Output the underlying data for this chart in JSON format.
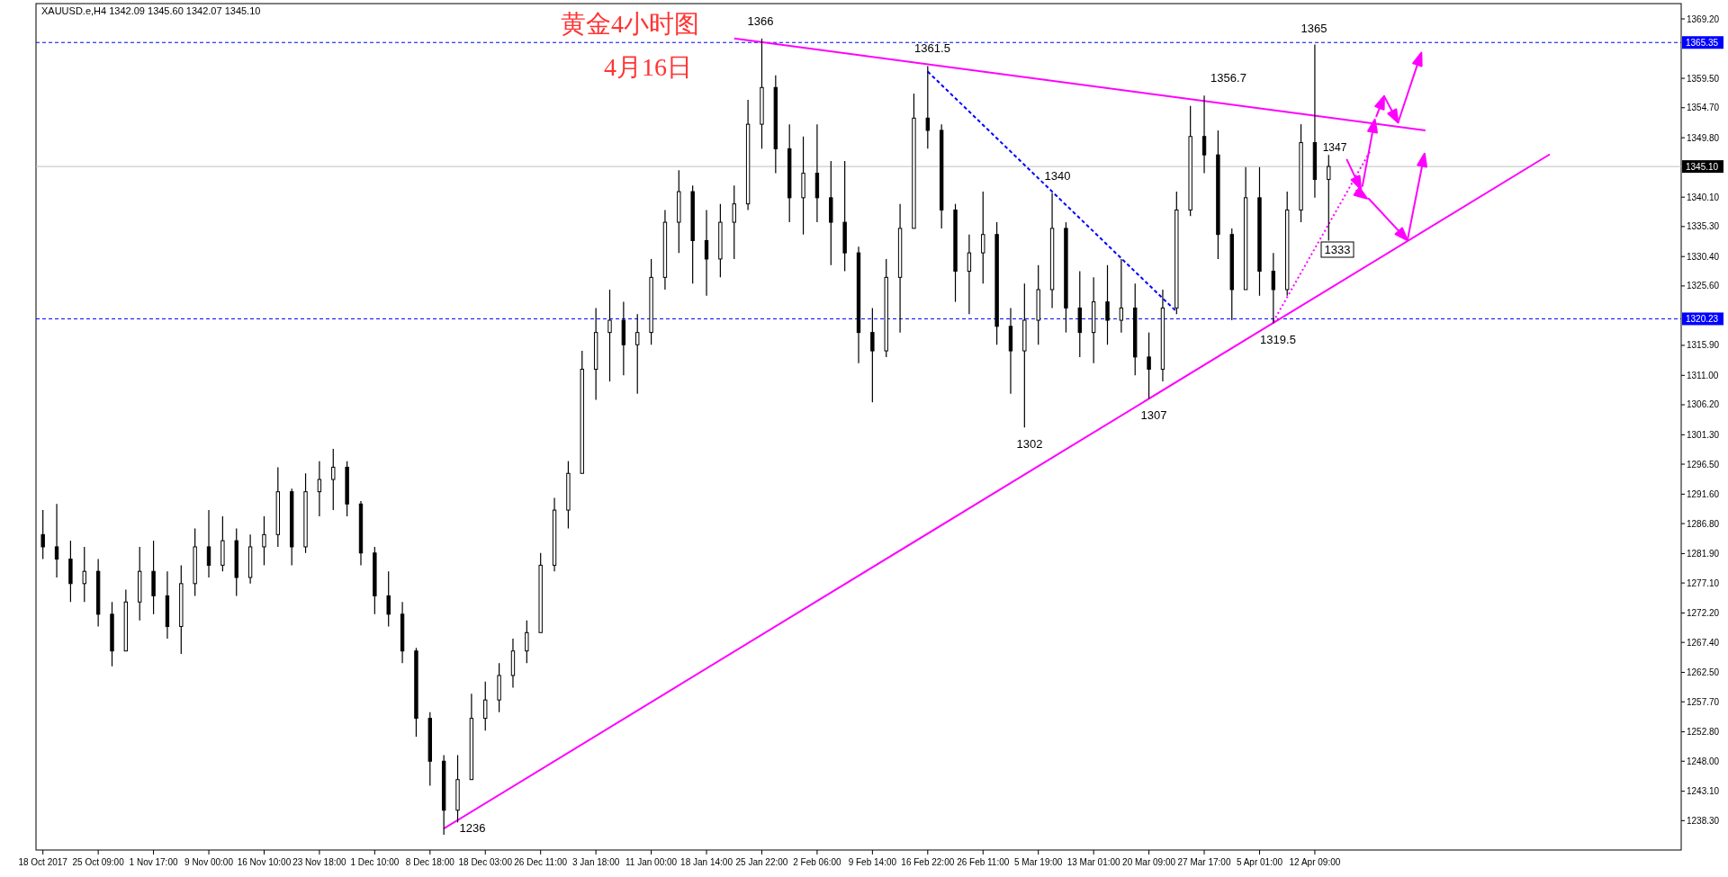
{
  "chart_data": {
    "type": "candlestick",
    "title": "黄金4小时图",
    "subtitle": "4月16日",
    "categories": [
      "18 Oct 2017",
      null,
      null,
      null,
      "25 Oct 09:00",
      null,
      null,
      null,
      "1 Nov 17:00",
      null,
      null,
      null,
      "9 Nov 00:00",
      null,
      null,
      null,
      "16 Nov 10:00",
      null,
      null,
      null,
      "23 Nov 18:00",
      null,
      null,
      null,
      "1 Dec 10:00",
      null,
      null,
      null,
      "8 Dec 18:00",
      null,
      null,
      null,
      "18 Dec 03:00",
      null,
      null,
      null,
      "26 Dec 11:00",
      null,
      null,
      null,
      "3 Jan 18:00",
      null,
      null,
      null,
      "11 Jan 00:00",
      null,
      null,
      null,
      "18 Jan 14:00",
      null,
      null,
      null,
      "25 Jan 22:00",
      null,
      null,
      null,
      "2 Feb 06:00",
      null,
      null,
      null,
      "9 Feb 14:00",
      null,
      null,
      null,
      "16 Feb 22:00",
      null,
      null,
      null,
      "26 Feb 11:00",
      null,
      null,
      null,
      "5 Mar 19:00",
      null,
      null,
      null,
      "13 Mar 01:00",
      null,
      null,
      null,
      "20 Mar 09:00",
      null,
      null,
      null,
      "27 Mar 17:00",
      null,
      null,
      null,
      "5 Apr 01:00",
      null,
      null,
      null,
      "12 Apr 09:00",
      null,
      null,
      null,
      null,
      null,
      null,
      null,
      null,
      null,
      null,
      null,
      null,
      null,
      null,
      null,
      null,
      null,
      null,
      null,
      null,
      null,
      null,
      null,
      null,
      null,
      null
    ],
    "ohlc": [
      [
        1285,
        1289,
        1281,
        1283
      ],
      [
        1283,
        1290,
        1278,
        1281
      ],
      [
        1281,
        1284,
        1274,
        1277
      ],
      [
        1277,
        1283,
        1274,
        1279
      ],
      [
        1279,
        1281,
        1270,
        1272
      ],
      [
        1272,
        1274,
        1263.5,
        1266
      ],
      [
        1266,
        1276,
        1266,
        1274
      ],
      [
        1274,
        1283,
        1271,
        1279
      ],
      [
        1279,
        1284,
        1272,
        1275
      ],
      [
        1275,
        1279,
        1268,
        1270
      ],
      [
        1270,
        1280,
        1265.5,
        1277
      ],
      [
        1277,
        1286,
        1275,
        1283
      ],
      [
        1283,
        1289,
        1278,
        1280
      ],
      [
        1280,
        1288,
        1279,
        1284
      ],
      [
        1284,
        1286,
        1275,
        1278
      ],
      [
        1278,
        1285,
        1277,
        1283
      ],
      [
        1283,
        1288,
        1280,
        1285
      ],
      [
        1285,
        1296,
        1283,
        1292
      ],
      [
        1292,
        1292.5,
        1280,
        1283
      ],
      [
        1283,
        1295,
        1282,
        1292
      ],
      [
        1292,
        1297,
        1288,
        1294
      ],
      [
        1294,
        1299,
        1289,
        1296
      ],
      [
        1296,
        1297,
        1288,
        1290
      ],
      [
        1290,
        1290.5,
        1280,
        1282
      ],
      [
        1282,
        1283,
        1272,
        1275
      ],
      [
        1275,
        1279,
        1270,
        1272
      ],
      [
        1272,
        1274,
        1264,
        1266
      ],
      [
        1266,
        1266.5,
        1252,
        1255
      ],
      [
        1255,
        1256,
        1244,
        1248
      ],
      [
        1248,
        1249,
        1236,
        1240
      ],
      [
        1240,
        1249,
        1238,
        1245
      ],
      [
        1245,
        1259,
        1245,
        1255
      ],
      [
        1255,
        1261,
        1253,
        1258
      ],
      [
        1258,
        1264,
        1256,
        1262
      ],
      [
        1262,
        1268,
        1260,
        1266
      ],
      [
        1266,
        1271,
        1264,
        1269
      ],
      [
        1269,
        1282,
        1269,
        1280
      ],
      [
        1280,
        1291,
        1279,
        1289
      ],
      [
        1289,
        1297,
        1286,
        1295
      ],
      [
        1295,
        1315,
        1295,
        1312
      ],
      [
        1312,
        1322,
        1307,
        1318
      ],
      [
        1318,
        1325,
        1310,
        1320
      ],
      [
        1320,
        1323,
        1311,
        1316
      ],
      [
        1316,
        1321,
        1308,
        1318
      ],
      [
        1318,
        1330,
        1316,
        1327
      ],
      [
        1327,
        1338,
        1325,
        1336
      ],
      [
        1336,
        1344.5,
        1331,
        1341
      ],
      [
        1341,
        1342,
        1326,
        1333
      ],
      [
        1333,
        1338,
        1324,
        1330
      ],
      [
        1330,
        1339,
        1327,
        1336
      ],
      [
        1336,
        1342,
        1330,
        1339
      ],
      [
        1339,
        1356,
        1338,
        1352
      ],
      [
        1352,
        1366,
        1348,
        1358
      ],
      [
        1358,
        1360,
        1344,
        1348
      ],
      [
        1348,
        1352,
        1336,
        1340
      ],
      [
        1340,
        1350,
        1334,
        1344
      ],
      [
        1344,
        1352,
        1336,
        1340
      ],
      [
        1340,
        1346,
        1329,
        1336
      ],
      [
        1336,
        1346,
        1328,
        1331
      ],
      [
        1331,
        1332,
        1313,
        1318
      ],
      [
        1318,
        1322,
        1306.6,
        1315
      ],
      [
        1315,
        1330,
        1314,
        1327
      ],
      [
        1327,
        1339,
        1318,
        1335
      ],
      [
        1335,
        1357,
        1335,
        1353
      ],
      [
        1353,
        1361.5,
        1348,
        1351
      ],
      [
        1351,
        1352,
        1335,
        1338
      ],
      [
        1338,
        1339,
        1323,
        1328
      ],
      [
        1328,
        1334,
        1321,
        1331
      ],
      [
        1331,
        1341,
        1326,
        1334
      ],
      [
        1334,
        1336,
        1316,
        1319
      ],
      [
        1319,
        1322,
        1308,
        1315
      ],
      [
        1315,
        1326,
        1302.5,
        1320
      ],
      [
        1320,
        1329,
        1316,
        1325
      ],
      [
        1325,
        1340.8,
        1322,
        1335
      ],
      [
        1335,
        1336,
        1318,
        1322
      ],
      [
        1322,
        1328,
        1314,
        1318
      ],
      [
        1318,
        1327,
        1313,
        1323
      ],
      [
        1323,
        1329,
        1316,
        1320
      ],
      [
        1320,
        1330,
        1318,
        1322
      ],
      [
        1322,
        1326,
        1311,
        1314
      ],
      [
        1314,
        1318,
        1307.2,
        1312
      ],
      [
        1312,
        1325,
        1310,
        1322
      ],
      [
        1322,
        1341,
        1321,
        1338
      ],
      [
        1338,
        1355,
        1337,
        1350
      ],
      [
        1350,
        1356.7,
        1344,
        1347
      ],
      [
        1347,
        1351,
        1330,
        1334
      ],
      [
        1334,
        1335,
        1320,
        1325
      ],
      [
        1325,
        1345,
        1325,
        1340
      ],
      [
        1340,
        1345,
        1324,
        1328
      ],
      [
        1328,
        1331,
        1319.5,
        1325
      ],
      [
        1325,
        1341,
        1324,
        1338
      ],
      [
        1338,
        1352,
        1336,
        1349
      ],
      [
        1349,
        1365,
        1340,
        1343
      ],
      [
        1343,
        1347,
        1333,
        1345.1
      ],
      null,
      null,
      null,
      null,
      null,
      null,
      null,
      null,
      null,
      null,
      null,
      null,
      null,
      null,
      null,
      null,
      null,
      null,
      null,
      null,
      null,
      null,
      null,
      null,
      null
    ],
    "series": [
      {
        "type": "line",
        "color": "#ff00ff",
        "line_style": "solid",
        "values": [
          null,
          null,
          null,
          null,
          null,
          null,
          null,
          null,
          null,
          null,
          null,
          null,
          null,
          null,
          null,
          null,
          null,
          null,
          null,
          null,
          null,
          null,
          null,
          null,
          null,
          null,
          null,
          null,
          null,
          null,
          null,
          null,
          null,
          null,
          null,
          null,
          null,
          null,
          null,
          null,
          null,
          null,
          null,
          null,
          null,
          null,
          null,
          null,
          null,
          null,
          1366.0,
          null,
          null,
          null,
          null,
          null,
          null,
          null,
          null,
          null,
          null,
          null,
          null,
          null,
          null,
          null,
          null,
          null,
          null,
          null,
          null,
          null,
          null,
          null,
          null,
          null,
          null,
          null,
          null,
          null,
          null,
          null,
          null,
          null,
          null,
          null,
          null,
          null,
          null,
          null,
          null,
          null,
          null,
          null,
          null,
          null,
          null,
          null,
          null,
          null,
          1351.0,
          null,
          null,
          null,
          null,
          null,
          null,
          null,
          null,
          null,
          null,
          null,
          null,
          null,
          null,
          null,
          null,
          null,
          null
        ]
      },
      {
        "type": "line",
        "color": "#ff00ff",
        "line_style": "solid",
        "values": [
          null,
          null,
          null,
          null,
          null,
          null,
          null,
          null,
          null,
          null,
          null,
          null,
          null,
          null,
          null,
          null,
          null,
          null,
          null,
          null,
          null,
          null,
          null,
          null,
          null,
          null,
          null,
          null,
          null,
          1237.0,
          null,
          null,
          null,
          null,
          null,
          null,
          null,
          null,
          null,
          null,
          null,
          null,
          null,
          null,
          null,
          null,
          null,
          null,
          null,
          null,
          null,
          null,
          null,
          null,
          null,
          null,
          null,
          null,
          null,
          null,
          null,
          null,
          null,
          null,
          null,
          null,
          null,
          null,
          null,
          null,
          null,
          null,
          null,
          null,
          null,
          null,
          null,
          null,
          null,
          null,
          null,
          null,
          null,
          null,
          null,
          null,
          null,
          null,
          null,
          null,
          null,
          null,
          null,
          null,
          null,
          null,
          null,
          null,
          null,
          null,
          null,
          null,
          null,
          null,
          null,
          null,
          null,
          null,
          null,
          1347.1,
          null,
          null,
          null,
          null,
          null,
          null,
          null,
          null,
          null
        ]
      },
      {
        "type": "line",
        "color": "#0000ff",
        "line_style": "dashed",
        "values": [
          null,
          null,
          null,
          null,
          null,
          null,
          null,
          null,
          null,
          null,
          null,
          null,
          null,
          null,
          null,
          null,
          null,
          null,
          null,
          null,
          null,
          null,
          null,
          null,
          null,
          null,
          null,
          null,
          null,
          null,
          null,
          null,
          null,
          null,
          null,
          null,
          null,
          null,
          null,
          null,
          null,
          null,
          null,
          null,
          null,
          null,
          null,
          null,
          null,
          null,
          null,
          null,
          null,
          null,
          null,
          null,
          null,
          null,
          null,
          null,
          null,
          null,
          null,
          null,
          1360.6,
          null,
          null,
          null,
          null,
          null,
          null,
          null,
          null,
          null,
          null,
          null,
          null,
          null,
          null,
          null,
          null,
          null,
          1321.4,
          null,
          null,
          null,
          null,
          null,
          null,
          null,
          null,
          null,
          null,
          null,
          null,
          null,
          null,
          null,
          null,
          null,
          null,
          null,
          null,
          null,
          null,
          null,
          null,
          null,
          null,
          null,
          null,
          null,
          null,
          null,
          null,
          null,
          null,
          null,
          null
        ]
      },
      {
        "type": "line",
        "color": "#ff00ff",
        "line_style": "dotted",
        "values": [
          null,
          null,
          null,
          null,
          null,
          null,
          null,
          null,
          null,
          null,
          null,
          null,
          null,
          null,
          null,
          null,
          null,
          null,
          null,
          null,
          null,
          null,
          null,
          null,
          null,
          null,
          null,
          null,
          null,
          null,
          null,
          null,
          null,
          null,
          null,
          null,
          null,
          null,
          null,
          null,
          null,
          null,
          null,
          null,
          null,
          null,
          null,
          null,
          null,
          null,
          null,
          null,
          null,
          null,
          null,
          null,
          null,
          null,
          null,
          null,
          null,
          null,
          null,
          null,
          null,
          null,
          null,
          null,
          null,
          null,
          null,
          null,
          null,
          null,
          null,
          null,
          null,
          null,
          null,
          null,
          null,
          null,
          null,
          null,
          null,
          null,
          null,
          null,
          null,
          1319.8,
          null,
          null,
          null,
          null,
          null,
          null,
          1347.6,
          null,
          null,
          null,
          null,
          null,
          null,
          null,
          null,
          null,
          null,
          null,
          null,
          null,
          null,
          null,
          null,
          null,
          null,
          null,
          null,
          null,
          null
        ]
      }
    ],
    "ref_lines": [
      {
        "axis": "y",
        "value": 1365.35,
        "label": "1365.35",
        "color": "#0000ff",
        "line_style": "dashed"
      },
      {
        "axis": "y",
        "value": 1345.1,
        "label": "1345.10",
        "color": "#c0c0c0",
        "line_style": "solid"
      },
      {
        "axis": "y",
        "value": 1320.23,
        "label": "1320.23",
        "color": "#0000ff",
        "line_style": "dashed"
      }
    ],
    "annotations": [
      "XAUUSD.e,H4  1342.09 1345.60 1342.07 1345.10",
      "1366",
      "1361.5",
      "1356.7",
      "1365",
      "1347",
      "1340",
      "1333",
      "1319.5",
      "1307",
      "1302",
      "1236"
    ],
    "ylim": [
      1233.5,
      1371.7
    ],
    "yticks": [
      {
        "value": 1369.2,
        "label": "1369.20"
      },
      {
        "value": 1359.5,
        "label": "1359.50"
      },
      {
        "value": 1354.7,
        "label": "1354.70"
      },
      {
        "value": 1349.8,
        "label": "1349.80"
      },
      {
        "value": 1340.1,
        "label": "1340.10"
      },
      {
        "value": 1335.3,
        "label": "1335.30"
      },
      {
        "value": 1330.4,
        "label": "1330.40"
      },
      {
        "value": 1325.6,
        "label": "1325.60"
      },
      {
        "value": 1315.9,
        "label": "1315.90"
      },
      {
        "value": 1311,
        "label": "1311.00"
      },
      {
        "value": 1306.2,
        "label": "1306.20"
      },
      {
        "value": 1301.3,
        "label": "1301.30"
      },
      {
        "value": 1296.5,
        "label": "1296.50"
      },
      {
        "value": 1291.6,
        "label": "1291.60"
      },
      {
        "value": 1286.8,
        "label": "1286.80"
      },
      {
        "value": 1281.9,
        "label": "1281.90"
      },
      {
        "value": 1277.1,
        "label": "1277.10"
      },
      {
        "value": 1272.2,
        "label": "1272.20"
      },
      {
        "value": 1267.4,
        "label": "1267.40"
      },
      {
        "value": 1262.5,
        "label": "1262.50"
      },
      {
        "value": 1257.7,
        "label": "1257.70"
      },
      {
        "value": 1252.8,
        "label": "1252.80"
      },
      {
        "value": 1248,
        "label": "1248.00"
      },
      {
        "value": 1243.1,
        "label": "1243.10"
      },
      {
        "value": 1238.3,
        "label": "1238.30"
      }
    ]
  }
}
